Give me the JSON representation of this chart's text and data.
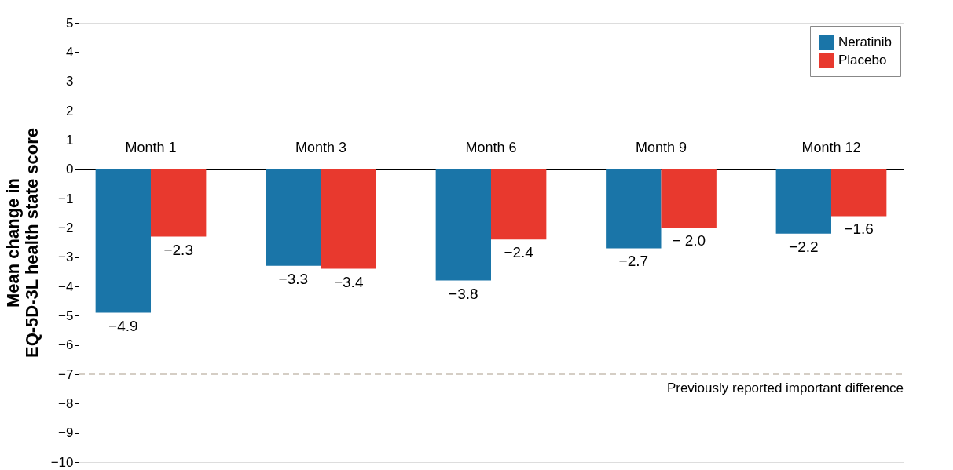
{
  "chart_data": {
    "type": "bar",
    "ylabel": "Mean change in\nEQ-5D-3L health state score",
    "categories": [
      "Month 1",
      "Month 3",
      "Month 6",
      "Month 9",
      "Month 12"
    ],
    "series": [
      {
        "name": "Neratinib",
        "color": "#1a75a8",
        "values": [
          -4.9,
          -3.3,
          -3.8,
          -2.7,
          -2.2
        ],
        "value_labels": [
          "−4.9",
          "−3.3",
          "−3.8",
          "−2.7",
          "−2.2"
        ]
      },
      {
        "name": "Placebo",
        "color": "#e8392e",
        "values": [
          -2.3,
          -3.4,
          -2.4,
          -2.0,
          -1.6
        ],
        "value_labels": [
          "−2.3",
          "−3.4",
          "−2.4",
          "− 2.0",
          "−1.6"
        ]
      }
    ],
    "ylim": [
      -10,
      5
    ],
    "yticks": [
      {
        "value": -10,
        "label": "−10"
      },
      {
        "value": -9,
        "label": "−9"
      },
      {
        "value": -8,
        "label": "−8"
      },
      {
        "value": -7,
        "label": "−7"
      },
      {
        "value": -6,
        "label": "−6"
      },
      {
        "value": -5,
        "label": "−5"
      },
      {
        "value": -4,
        "label": "−4"
      },
      {
        "value": -3,
        "label": "−3"
      },
      {
        "value": -2,
        "label": "−2"
      },
      {
        "value": -1,
        "label": "−1"
      },
      0,
      1,
      2,
      3,
      4,
      5
    ],
    "ref_lines": [
      {
        "axis": "y",
        "value": -7,
        "label": "Previously reported important difference",
        "color": "#c8bfb2",
        "line_style": "dashed"
      }
    ],
    "legend": "top right",
    "grid": false
  }
}
